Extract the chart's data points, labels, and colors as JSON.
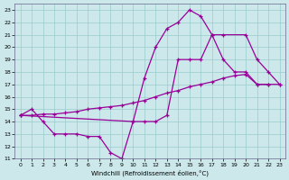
{
  "xlabel": "Windchill (Refroidissement éolien,°C)",
  "background_color": "#cce8ea",
  "grid_color": "#99cccc",
  "line_color": "#990099",
  "xlim": [
    -0.5,
    23.5
  ],
  "ylim": [
    11,
    23.5
  ],
  "xticks": [
    0,
    1,
    2,
    3,
    4,
    5,
    6,
    7,
    8,
    9,
    10,
    11,
    12,
    13,
    14,
    15,
    16,
    17,
    18,
    19,
    20,
    21,
    22,
    23
  ],
  "yticks": [
    11,
    12,
    13,
    14,
    15,
    16,
    17,
    18,
    19,
    20,
    21,
    22,
    23
  ],
  "line1_x": [
    0,
    1,
    2,
    3,
    4,
    5,
    6,
    7,
    8,
    9,
    10,
    11,
    12,
    13,
    14,
    15,
    16,
    17,
    18,
    19,
    20,
    21,
    22
  ],
  "line1_y": [
    14.5,
    15.0,
    14.0,
    13.0,
    13.0,
    13.0,
    12.8,
    12.8,
    11.5,
    11.0,
    14.0,
    14.0,
    14.0,
    14.5,
    19.0,
    19.0,
    19.0,
    21.0,
    19.0,
    18.0,
    18.0,
    17.0,
    17.0
  ],
  "line2_x": [
    0,
    1,
    2,
    3,
    4,
    5,
    6,
    7,
    8,
    9,
    10,
    11,
    12,
    13,
    14,
    15,
    16,
    17,
    18,
    19,
    20,
    21,
    22,
    23
  ],
  "line2_y": [
    14.5,
    14.5,
    14.6,
    14.6,
    14.7,
    14.8,
    15.0,
    15.1,
    15.2,
    15.3,
    15.5,
    15.7,
    16.0,
    16.3,
    16.5,
    16.8,
    17.0,
    17.2,
    17.5,
    17.7,
    17.8,
    17.0,
    17.0,
    17.0
  ],
  "line3_x": [
    0,
    10,
    11,
    12,
    13,
    14,
    15,
    16,
    17,
    18,
    20,
    21,
    22,
    23
  ],
  "line3_y": [
    14.5,
    14.0,
    17.5,
    20.0,
    21.5,
    22.0,
    23.0,
    22.5,
    21.0,
    21.0,
    21.0,
    19.0,
    18.0,
    17.0
  ]
}
